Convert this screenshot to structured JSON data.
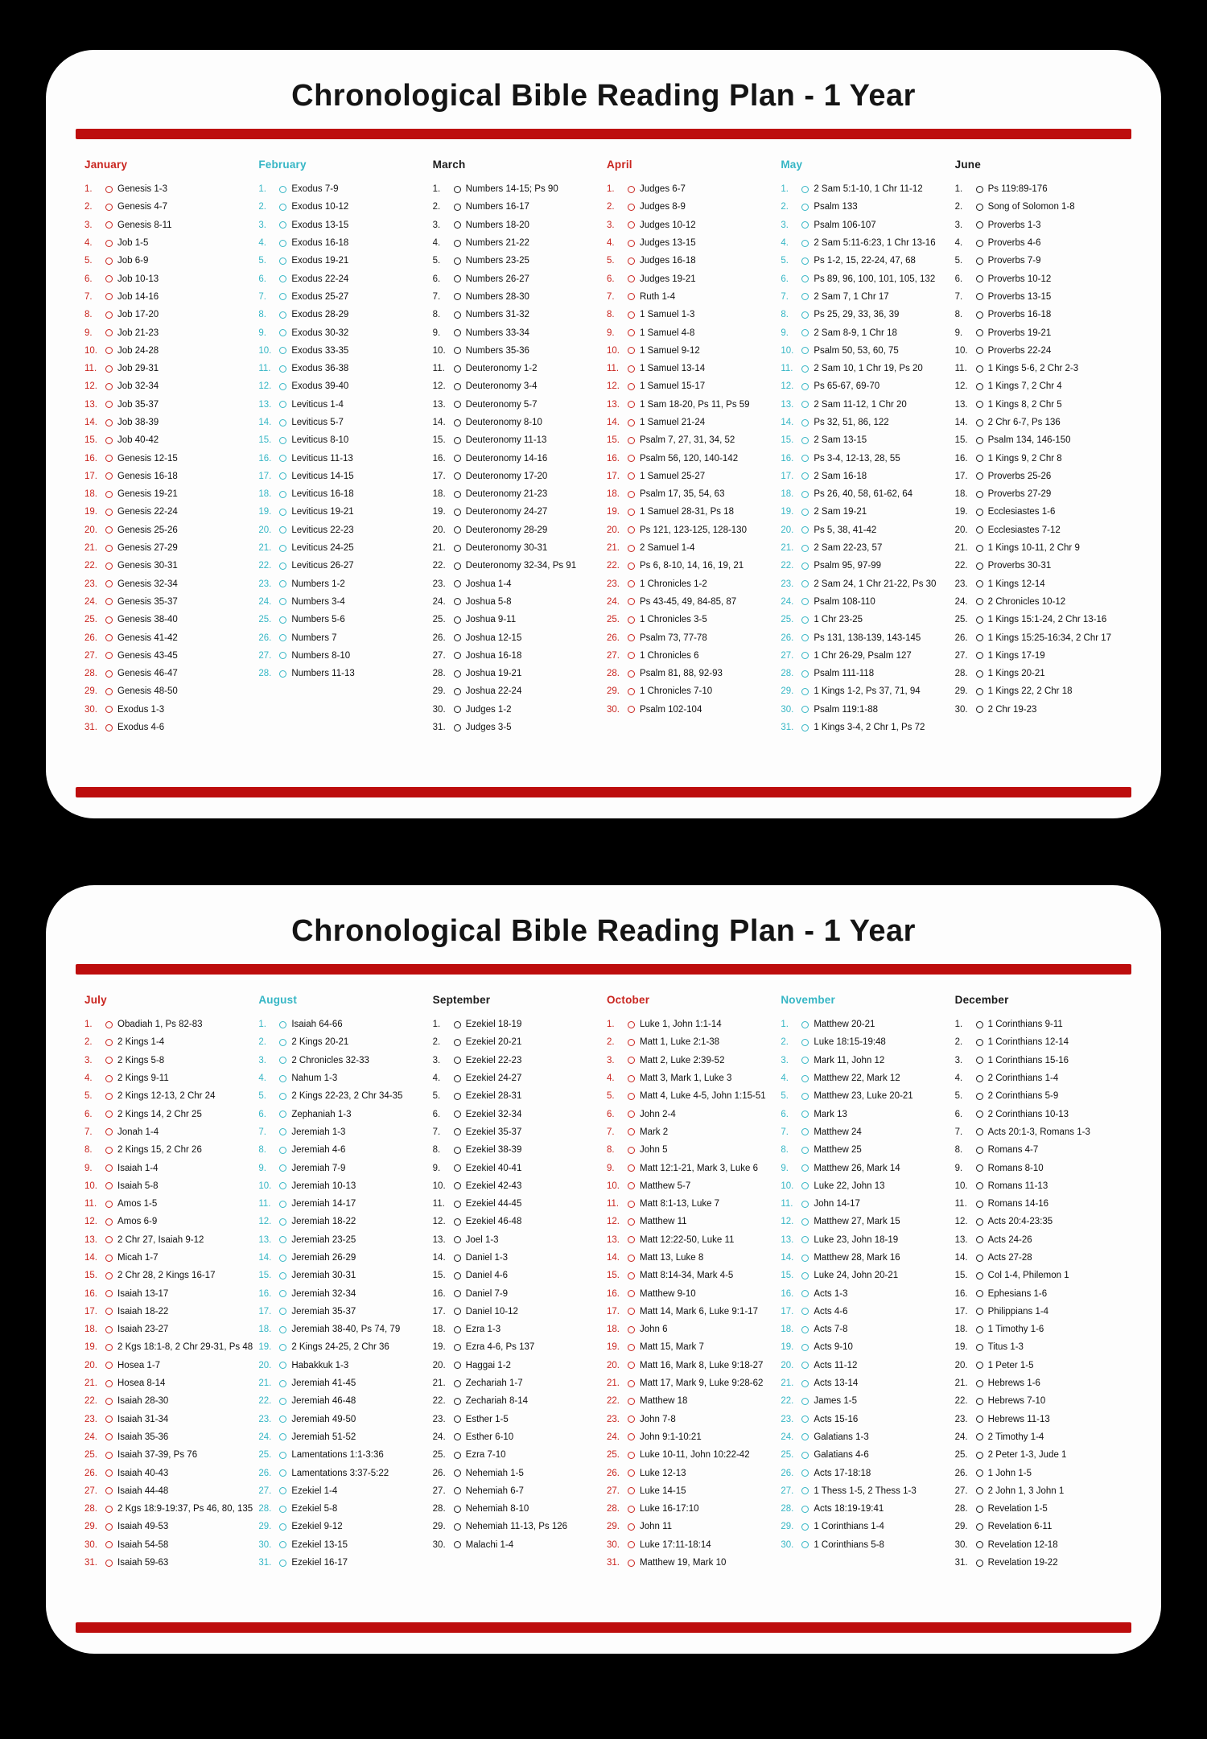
{
  "title": "Chronological Bible Reading Plan - 1 Year",
  "theme": {
    "bar_color": "#bd0d0d",
    "month_colors": {
      "red": "#c9251f",
      "cyan": "#36b6c5",
      "black": "#1b1b1b"
    }
  },
  "pages": [
    {
      "months": [
        {
          "name": "January",
          "color": "red",
          "readings": [
            "Genesis 1-3",
            "Genesis 4-7",
            "Genesis 8-11",
            "Job 1-5",
            "Job 6-9",
            "Job 10-13",
            "Job 14-16",
            "Job 17-20",
            "Job 21-23",
            "Job 24-28",
            "Job 29-31",
            "Job 32-34",
            "Job 35-37",
            "Job 38-39",
            "Job 40-42",
            "Genesis 12-15",
            "Genesis 16-18",
            "Genesis 19-21",
            "Genesis 22-24",
            "Genesis 25-26",
            "Genesis 27-29",
            "Genesis 30-31",
            "Genesis 32-34",
            "Genesis 35-37",
            "Genesis 38-40",
            "Genesis 41-42",
            "Genesis 43-45",
            "Genesis 46-47",
            "Genesis 48-50",
            "Exodus 1-3",
            "Exodus 4-6"
          ]
        },
        {
          "name": "February",
          "color": "cyan",
          "readings": [
            "Exodus 7-9",
            "Exodus 10-12",
            "Exodus 13-15",
            "Exodus 16-18",
            "Exodus 19-21",
            "Exodus 22-24",
            "Exodus 25-27",
            "Exodus 28-29",
            "Exodus 30-32",
            "Exodus 33-35",
            "Exodus 36-38",
            "Exodus 39-40",
            "Leviticus 1-4",
            "Leviticus 5-7",
            "Leviticus 8-10",
            "Leviticus 11-13",
            "Leviticus 14-15",
            "Leviticus 16-18",
            "Leviticus 19-21",
            "Leviticus 22-23",
            "Leviticus 24-25",
            "Leviticus 26-27",
            "Numbers 1-2",
            "Numbers 3-4",
            "Numbers 5-6",
            "Numbers 7",
            "Numbers 8-10",
            "Numbers 11-13"
          ]
        },
        {
          "name": "March",
          "color": "black",
          "readings": [
            "Numbers 14-15; Ps 90",
            "Numbers 16-17",
            "Numbers 18-20",
            "Numbers 21-22",
            "Numbers 23-25",
            "Numbers 26-27",
            "Numbers 28-30",
            "Numbers 31-32",
            "Numbers 33-34",
            "Numbers 35-36",
            "Deuteronomy 1-2",
            "Deuteronomy 3-4",
            "Deuteronomy 5-7",
            "Deuteronomy 8-10",
            "Deuteronomy 11-13",
            "Deuteronomy 14-16",
            "Deuteronomy 17-20",
            "Deuteronomy 21-23",
            "Deuteronomy 24-27",
            "Deuteronomy 28-29",
            "Deuteronomy 30-31",
            "Deuteronomy 32-34, Ps 91",
            "Joshua 1-4",
            "Joshua 5-8",
            "Joshua 9-11",
            "Joshua 12-15",
            "Joshua 16-18",
            "Joshua 19-21",
            "Joshua 22-24",
            "Judges 1-2",
            "Judges 3-5"
          ]
        },
        {
          "name": "April",
          "color": "red",
          "readings": [
            "Judges 6-7",
            "Judges 8-9",
            "Judges 10-12",
            "Judges 13-15",
            "Judges 16-18",
            "Judges 19-21",
            "Ruth 1-4",
            "1 Samuel 1-3",
            "1 Samuel 4-8",
            "1 Samuel 9-12",
            "1 Samuel 13-14",
            "1 Samuel 15-17",
            "1 Sam 18-20, Ps 11, Ps 59",
            "1 Samuel 21-24",
            "Psalm 7, 27, 31, 34, 52",
            "Psalm 56, 120, 140-142",
            "1 Samuel 25-27",
            "Psalm 17, 35, 54, 63",
            "1 Samuel 28-31, Ps 18",
            "Ps 121, 123-125, 128-130",
            "2 Samuel 1-4",
            "Ps 6, 8-10, 14, 16, 19, 21",
            "1 Chronicles 1-2",
            "Ps 43-45, 49, 84-85, 87",
            "1 Chronicles 3-5",
            "Psalm 73, 77-78",
            "1 Chronicles 6",
            "Psalm 81, 88, 92-93",
            "1 Chronicles 7-10",
            "Psalm 102-104"
          ]
        },
        {
          "name": "May",
          "color": "cyan",
          "readings": [
            "2 Sam 5:1-10, 1 Chr 11-12",
            "Psalm 133",
            "Psalm 106-107",
            "2 Sam 5:11-6:23, 1 Chr 13-16",
            "Ps 1-2, 15, 22-24, 47, 68",
            "Ps 89, 96, 100, 101, 105, 132",
            "2 Sam 7, 1 Chr 17",
            "Ps 25, 29, 33, 36, 39",
            "2 Sam 8-9, 1 Chr 18",
            "Psalm 50, 53, 60, 75",
            "2 Sam 10, 1 Chr 19, Ps 20",
            "Ps 65-67, 69-70",
            "2 Sam 11-12, 1 Chr 20",
            "Ps 32, 51, 86, 122",
            "2 Sam 13-15",
            "Ps 3-4, 12-13, 28, 55",
            "2 Sam 16-18",
            "Ps 26, 40, 58, 61-62, 64",
            "2 Sam 19-21",
            "Ps 5, 38, 41-42",
            "2 Sam 22-23, 57",
            "Psalm 95, 97-99",
            "2 Sam 24, 1 Chr 21-22, Ps 30",
            "Psalm 108-110",
            "1 Chr 23-25",
            "Ps 131, 138-139, 143-145",
            "1 Chr 26-29, Psalm 127",
            "Psalm 111-118",
            "1 Kings 1-2, Ps 37, 71, 94",
            "Psalm 119:1-88",
            "1 Kings 3-4, 2 Chr 1, Ps 72"
          ]
        },
        {
          "name": "June",
          "color": "black",
          "readings": [
            "Ps 119:89-176",
            "Song of Solomon 1-8",
            "Proverbs 1-3",
            "Proverbs 4-6",
            "Proverbs 7-9",
            "Proverbs 10-12",
            "Proverbs 13-15",
            "Proverbs 16-18",
            "Proverbs 19-21",
            "Proverbs 22-24",
            "1 Kings 5-6, 2 Chr 2-3",
            "1 Kings 7, 2 Chr 4",
            "1 Kings 8, 2 Chr 5",
            "2 Chr 6-7, Ps 136",
            "Psalm 134, 146-150",
            "1 Kings 9, 2 Chr 8",
            "Proverbs 25-26",
            "Proverbs 27-29",
            "Ecclesiastes 1-6",
            "Ecclesiastes 7-12",
            "1 Kings 10-11, 2 Chr 9",
            "Proverbs 30-31",
            "1 Kings 12-14",
            "2 Chronicles 10-12",
            "1 Kings 15:1-24, 2 Chr 13-16",
            "1 Kings 15:25-16:34, 2 Chr 17",
            "1 Kings 17-19",
            "1 Kings 20-21",
            "1 Kings 22, 2 Chr 18",
            "2 Chr 19-23"
          ]
        }
      ]
    },
    {
      "months": [
        {
          "name": "July",
          "color": "red",
          "readings": [
            "Obadiah 1, Ps 82-83",
            "2 Kings 1-4",
            "2 Kings 5-8",
            "2 Kings 9-11",
            "2 Kings 12-13, 2 Chr 24",
            "2 Kings 14, 2 Chr 25",
            "Jonah 1-4",
            "2 Kings 15, 2 Chr 26",
            "Isaiah 1-4",
            "Isaiah 5-8",
            "Amos 1-5",
            "Amos 6-9",
            "2 Chr 27, Isaiah 9-12",
            "Micah 1-7",
            "2 Chr 28, 2 Kings 16-17",
            "Isaiah 13-17",
            "Isaiah 18-22",
            "Isaiah 23-27",
            "2 Kgs 18:1-8, 2 Chr 29-31, Ps 48",
            "Hosea 1-7",
            "Hosea 8-14",
            "Isaiah 28-30",
            "Isaiah 31-34",
            "Isaiah 35-36",
            "Isaiah 37-39, Ps 76",
            "Isaiah 40-43",
            "Isaiah 44-48",
            "2 Kgs 18:9-19:37, Ps 46, 80, 135",
            "Isaiah 49-53",
            "Isaiah 54-58",
            "Isaiah 59-63"
          ]
        },
        {
          "name": "August",
          "color": "cyan",
          "readings": [
            "Isaiah 64-66",
            "2 Kings 20-21",
            "2 Chronicles 32-33",
            "Nahum 1-3",
            "2 Kings 22-23, 2 Chr 34-35",
            "Zephaniah 1-3",
            "Jeremiah 1-3",
            "Jeremiah 4-6",
            "Jeremiah 7-9",
            "Jeremiah 10-13",
            "Jeremiah 14-17",
            "Jeremiah 18-22",
            "Jeremiah 23-25",
            "Jeremiah 26-29",
            "Jeremiah 30-31",
            "Jeremiah 32-34",
            "Jeremiah 35-37",
            "Jeremiah 38-40, Ps 74, 79",
            "2 Kings 24-25, 2 Chr 36",
            "Habakkuk 1-3",
            "Jeremiah 41-45",
            "Jeremiah 46-48",
            "Jeremiah 49-50",
            "Jeremiah 51-52",
            "Lamentations 1:1-3:36",
            "Lamentations 3:37-5:22",
            "Ezekiel 1-4",
            "Ezekiel 5-8",
            "Ezekiel 9-12",
            "Ezekiel 13-15",
            "Ezekiel 16-17"
          ]
        },
        {
          "name": "September",
          "color": "black",
          "readings": [
            "Ezekiel 18-19",
            "Ezekiel 20-21",
            "Ezekiel 22-23",
            "Ezekiel 24-27",
            "Ezekiel 28-31",
            "Ezekiel 32-34",
            "Ezekiel 35-37",
            "Ezekiel 38-39",
            "Ezekiel 40-41",
            "Ezekiel 42-43",
            "Ezekiel 44-45",
            "Ezekiel 46-48",
            "Joel 1-3",
            "Daniel 1-3",
            "Daniel 4-6",
            "Daniel 7-9",
            "Daniel 10-12",
            "Ezra 1-3",
            "Ezra 4-6, Ps 137",
            "Haggai 1-2",
            "Zechariah 1-7",
            "Zechariah 8-14",
            "Esther 1-5",
            "Esther 6-10",
            "Ezra 7-10",
            "Nehemiah 1-5",
            "Nehemiah 6-7",
            "Nehemiah 8-10",
            "Nehemiah 11-13, Ps 126",
            "Malachi 1-4"
          ]
        },
        {
          "name": "October",
          "color": "red",
          "readings": [
            "Luke 1, John 1:1-14",
            "Matt 1, Luke 2:1-38",
            "Matt 2, Luke 2:39-52",
            "Matt 3, Mark 1, Luke 3",
            "Matt 4, Luke 4-5, John 1:15-51",
            "John 2-4",
            "Mark 2",
            "John 5",
            "Matt 12:1-21, Mark 3, Luke 6",
            "Matthew 5-7",
            "Matt 8:1-13, Luke 7",
            "Matthew 11",
            "Matt 12:22-50, Luke 11",
            "Matt 13, Luke 8",
            "Matt 8:14-34, Mark 4-5",
            "Matthew 9-10",
            "Matt 14, Mark 6, Luke 9:1-17",
            "John 6",
            "Matt 15, Mark 7",
            "Matt 16, Mark 8, Luke 9:18-27",
            "Matt 17, Mark 9, Luke 9:28-62",
            "Matthew 18",
            "John 7-8",
            "John 9:1-10:21",
            "Luke 10-11, John 10:22-42",
            "Luke 12-13",
            "Luke 14-15",
            "Luke 16-17:10",
            "John 11",
            "Luke 17:11-18:14",
            "Matthew 19, Mark 10"
          ]
        },
        {
          "name": "November",
          "color": "cyan",
          "readings": [
            "Matthew 20-21",
            "Luke 18:15-19:48",
            "Mark 11, John 12",
            "Matthew 22, Mark 12",
            "Matthew 23, Luke 20-21",
            "Mark 13",
            "Matthew 24",
            "Matthew 25",
            "Matthew 26, Mark 14",
            "Luke 22, John 13",
            "John 14-17",
            "Matthew 27, Mark 15",
            "Luke 23, John 18-19",
            "Matthew 28, Mark 16",
            "Luke 24, John 20-21",
            "Acts 1-3",
            "Acts 4-6",
            "Acts 7-8",
            "Acts 9-10",
            "Acts 11-12",
            "Acts 13-14",
            "James 1-5",
            "Acts 15-16",
            "Galatians 1-3",
            "Galatians 4-6",
            "Acts 17-18:18",
            "1 Thess 1-5, 2 Thess 1-3",
            "Acts 18:19-19:41",
            "1 Corinthians 1-4",
            "1 Corinthians 5-8"
          ]
        },
        {
          "name": "December",
          "color": "black",
          "readings": [
            "1 Corinthians 9-11",
            "1 Corinthians 12-14",
            "1 Corinthians 15-16",
            "2 Corinthians 1-4",
            "2 Corinthians 5-9",
            "2 Corinthians 10-13",
            "Acts 20:1-3, Romans 1-3",
            "Romans 4-7",
            "Romans 8-10",
            "Romans 11-13",
            "Romans 14-16",
            "Acts 20:4-23:35",
            "Acts 24-26",
            "Acts 27-28",
            "Col 1-4, Philemon 1",
            "Ephesians 1-6",
            "Philippians 1-4",
            "1 Timothy 1-6",
            "Titus 1-3",
            "1 Peter 1-5",
            "Hebrews 1-6",
            "Hebrews 7-10",
            "Hebrews 11-13",
            "2 Timothy 1-4",
            "2 Peter 1-3, Jude 1",
            "1 John 1-5",
            "2 John 1, 3 John 1",
            "Revelation 1-5",
            "Revelation 6-11",
            "Revelation 12-18",
            "Revelation 19-22"
          ]
        }
      ]
    }
  ]
}
